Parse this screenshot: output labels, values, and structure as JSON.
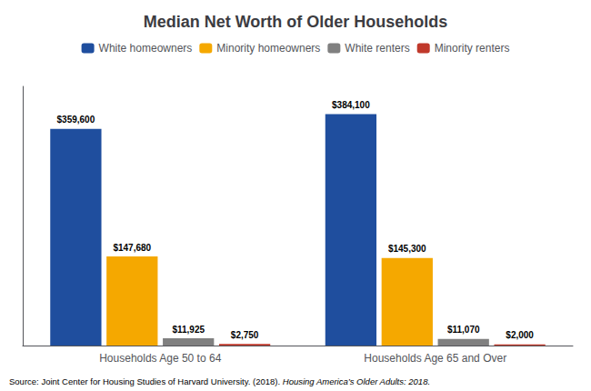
{
  "chart_data": {
    "type": "bar",
    "title": "Median Net Worth of Older Households",
    "categories": [
      "Households Age 50 to 64",
      "Households Age 65 and Over"
    ],
    "series": [
      {
        "name": "White homeowners",
        "color": "#1f4e9e",
        "values": [
          359600,
          384100
        ],
        "value_labels": [
          "$359,600",
          "$384,100"
        ]
      },
      {
        "name": "Minority homeowners",
        "color": "#f5a800",
        "values": [
          147680,
          145300
        ],
        "value_labels": [
          "$147,680",
          "$145,300"
        ]
      },
      {
        "name": "White renters",
        "color": "#808080",
        "values": [
          11925,
          11070
        ],
        "value_labels": [
          "$11,925",
          "$11,070"
        ]
      },
      {
        "name": "Minority renters",
        "color": "#c0392b",
        "values": [
          2750,
          2000
        ],
        "value_labels": [
          "$2,750",
          "$2,000"
        ]
      }
    ],
    "ylim": [
      0,
      430000
    ],
    "grid": false,
    "legend": "top",
    "data_labels": true,
    "tick_labels": "x",
    "annotations": [
      "Source: Joint Center for Housing Studies of Harvard University. (2018).",
      "Housing America’s Older Adults: 2018."
    ]
  }
}
